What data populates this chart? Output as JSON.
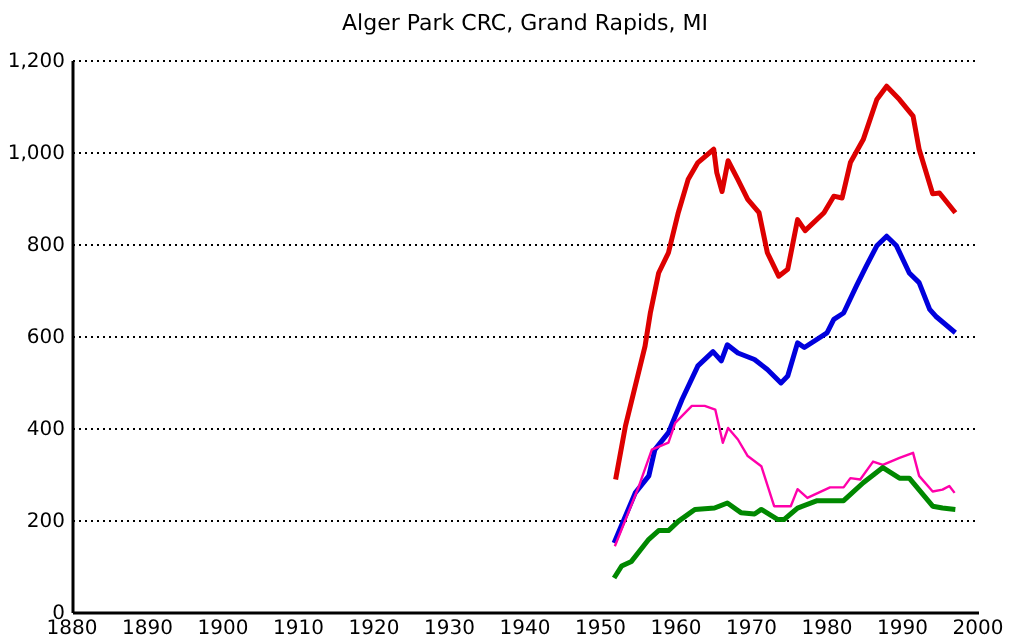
{
  "chart_data": {
    "type": "line",
    "title": "Alger Park CRC, Grand Rapids, MI",
    "xlim": [
      1880,
      2000
    ],
    "xticks": [
      1880,
      1890,
      1900,
      1910,
      1920,
      1930,
      1940,
      1950,
      1960,
      1970,
      1980,
      1990,
      2000
    ],
    "ylim": [
      0,
      1200
    ],
    "yticks": [
      0,
      200,
      400,
      600,
      800,
      {
        "value": 1000,
        "label": "1,000"
      },
      {
        "value": 1200,
        "label": "1,200"
      }
    ],
    "grid": "y",
    "marker": "none",
    "line_style": "solid",
    "series": [
      {
        "color": "#dd0000",
        "x": [
          1952,
          1953.3,
          1955.9,
          1956.6,
          1957.7,
          1959,
          1960.3,
          1961.6,
          1962.9,
          1965,
          1965.4,
          1966.1,
          1966.9,
          1968.2,
          1969.5,
          1971,
          1972.1,
          1973.6,
          1974.8,
          1976.1,
          1977.1,
          1979.6,
          1980.9,
          1982,
          1983.1,
          1984.8,
          1986.6,
          1987.9,
          1989.6,
          1991.4,
          1992.2,
          1994,
          1994.9,
          1997
        ],
        "values": [
          288,
          404,
          578,
          650,
          737,
          781,
          868,
          940,
          977,
          1006,
          955,
          914,
          981,
          940,
          897,
          868,
          781,
          730,
          745,
          853,
          829,
          868,
          904,
          900,
          977,
          1027,
          1114,
          1143,
          1114,
          1078,
          1006,
          909,
          911,
          868
        ]
      },
      {
        "color": "#0000dd",
        "x": [
          1951.8,
          1954.6,
          1956.4,
          1957.2,
          1959,
          1960.8,
          1962.9,
          1964.9,
          1966,
          1966.8,
          1968.2,
          1970.4,
          1972.1,
          1973.9,
          1974.8,
          1976.1,
          1977,
          1980,
          1980.9,
          1982.2,
          1983.9,
          1985.2,
          1986.6,
          1987.9,
          1989.2,
          1990.9,
          1992.2,
          1993.6,
          1994.4,
          1997
        ],
        "values": [
          150,
          259,
          296,
          353,
          390,
          462,
          535,
          566,
          546,
          581,
          563,
          549,
          527,
          498,
          513,
          585,
          575,
          607,
          636,
          650,
          709,
          752,
          796,
          817,
          796,
          737,
          716,
          658,
          643,
          607
        ]
      },
      {
        "color": "#ff00aa",
        "x": [
          1951.9,
          1955.1,
          1956.8,
          1959,
          1959.9,
          1962.1,
          1963.8,
          1965.2,
          1966.2,
          1966.9,
          1968.2,
          1969.5,
          1971.3,
          1973,
          1975.2,
          1976.1,
          1977.4,
          1980.4,
          1982.2,
          1983.1,
          1984.4,
          1986.1,
          1987.4,
          1989.6,
          1991.4,
          1992.2,
          1994,
          1995.3,
          1996.2,
          1996.9
        ],
        "values": [
          143,
          274,
          353,
          368,
          411,
          448,
          448,
          440,
          368,
          400,
          375,
          339,
          317,
          230,
          230,
          267,
          248,
          271,
          271,
          291,
          288,
          327,
          320,
          335,
          346,
          296,
          262,
          266,
          274,
          259
        ]
      },
      {
        "color": "#008800",
        "x": [
          1951.8,
          1952.8,
          1954.1,
          1956.4,
          1957.7,
          1959,
          1960.3,
          1962.5,
          1965.1,
          1966.8,
          1968.6,
          1970.4,
          1971.3,
          1973.5,
          1974.3,
          1976.1,
          1978.7,
          1982.2,
          1984.8,
          1987.4,
          1989.6,
          1990.9,
          1994,
          1995.3,
          1997
        ],
        "values": [
          74,
          100,
          110,
          158,
          177,
          177,
          197,
          223,
          226,
          237,
          216,
          213,
          223,
          201,
          201,
          226,
          242,
          242,
          281,
          314,
          291,
          291,
          230,
          226,
          223
        ]
      }
    ]
  }
}
